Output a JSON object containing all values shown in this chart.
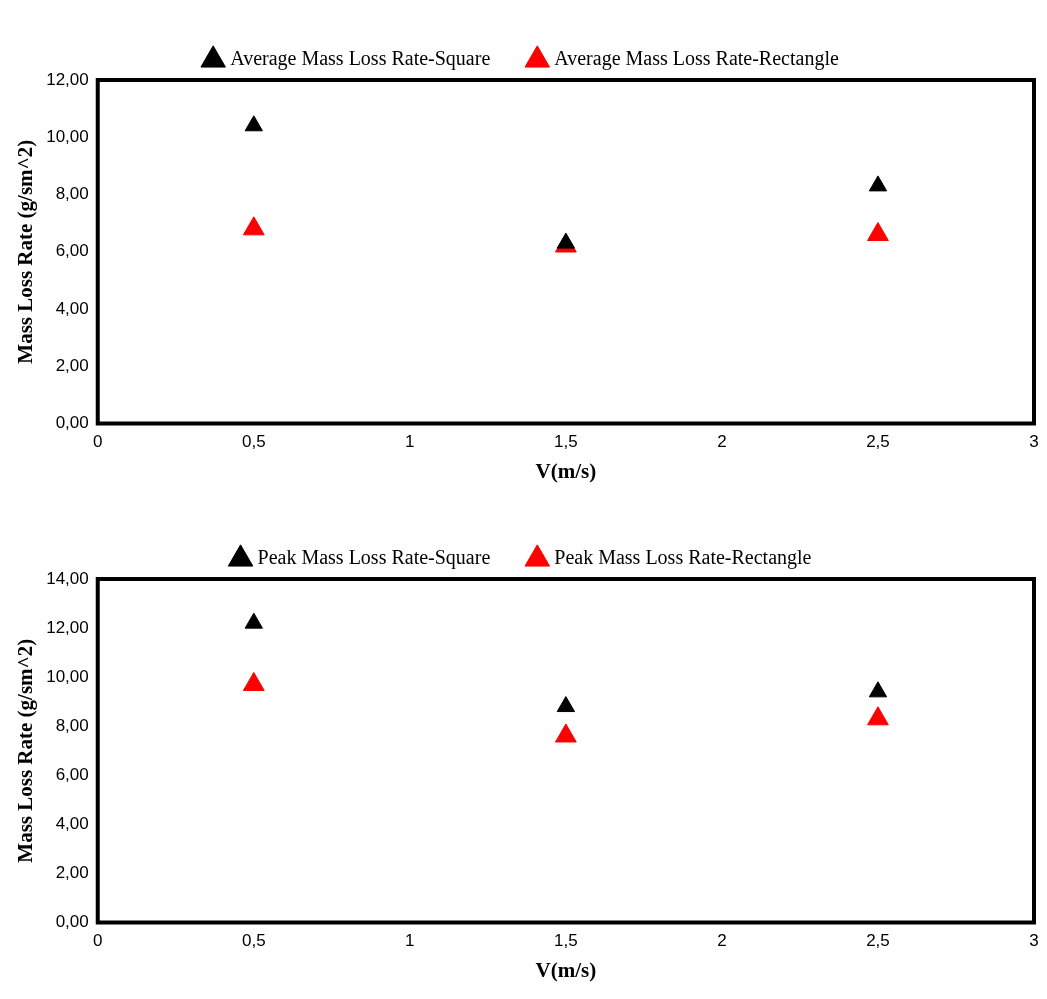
{
  "chart_data": [
    {
      "type": "scatter",
      "xlabel": "V(m/s)",
      "ylabel": "Mass Loss Rate (g/sm^2)",
      "marker": "triangle",
      "legend": "top",
      "grid": false,
      "x": [
        0.5,
        1.5,
        2.5
      ],
      "series": [
        {
          "name": "Average Mass Loss Rate-Square",
          "color": "#000000",
          "values": [
            10.4,
            6.3,
            8.3
          ]
        },
        {
          "name": "Average Mass Loss Rate-Rectangle",
          "color": "#ff0000",
          "values": [
            6.8,
            6.2,
            6.6
          ]
        }
      ],
      "xlim": [
        0,
        3
      ],
      "xticks": [
        0,
        {
          "value": 0.5,
          "label": "0,5"
        },
        1,
        {
          "value": 1.5,
          "label": "1,5"
        },
        2,
        {
          "value": 2.5,
          "label": "2,5"
        },
        3
      ],
      "ylim": [
        0,
        12
      ],
      "yticks": [
        {
          "value": 0,
          "label": "0,00"
        },
        {
          "value": 2,
          "label": "2,00"
        },
        {
          "value": 4,
          "label": "4,00"
        },
        {
          "value": 6,
          "label": "6,00"
        },
        {
          "value": 8,
          "label": "8,00"
        },
        {
          "value": 10,
          "label": "10,00"
        },
        {
          "value": 12,
          "label": "12,00"
        }
      ]
    },
    {
      "type": "scatter",
      "xlabel": "V(m/s)",
      "ylabel": "Mass Loss Rate (g/sm^2)",
      "marker": "triangle",
      "legend": "top",
      "grid": false,
      "x": [
        0.5,
        1.5,
        2.5
      ],
      "series": [
        {
          "name": "Peak Mass Loss Rate-Square",
          "color": "#000000",
          "values": [
            12.2,
            8.8,
            9.4
          ]
        },
        {
          "name": "Peak Mass Loss Rate-Rectangle",
          "color": "#ff0000",
          "values": [
            9.7,
            7.6,
            8.3
          ]
        }
      ],
      "xlim": [
        0,
        3
      ],
      "xticks": [
        0,
        {
          "value": 0.5,
          "label": "0,5"
        },
        1,
        {
          "value": 1.5,
          "label": "1,5"
        },
        2,
        {
          "value": 2.5,
          "label": "2,5"
        },
        3
      ],
      "ylim": [
        0,
        14
      ],
      "yticks": [
        {
          "value": 0,
          "label": "0,00"
        },
        {
          "value": 2,
          "label": "2,00"
        },
        {
          "value": 4,
          "label": "4,00"
        },
        {
          "value": 6,
          "label": "6,00"
        },
        {
          "value": 8,
          "label": "8,00"
        },
        {
          "value": 10,
          "label": "10,00"
        },
        {
          "value": 12,
          "label": "12,00"
        },
        {
          "value": 14,
          "label": "14,00"
        }
      ]
    }
  ]
}
